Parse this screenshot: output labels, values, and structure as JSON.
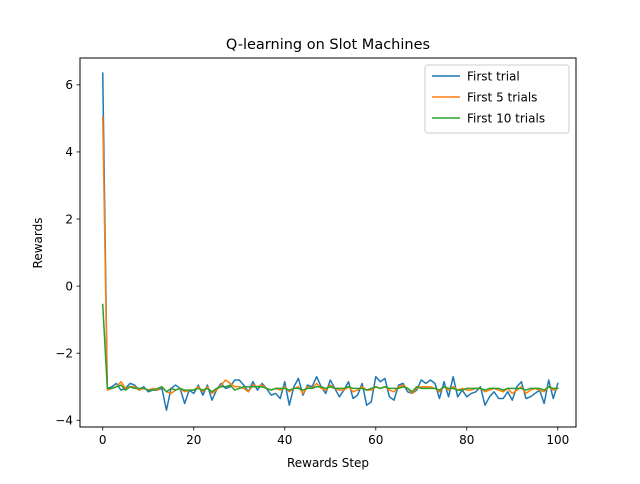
{
  "chart_data": {
    "type": "line",
    "title": "Q-learning on Slot Machines",
    "xlabel": "Rewards Step",
    "ylabel": "Rewards",
    "xlim": [
      -5,
      104
    ],
    "ylim": [
      -4.2,
      6.8
    ],
    "xticks": [
      0,
      20,
      40,
      60,
      80,
      100
    ],
    "yticks": [
      -4,
      -2,
      0,
      2,
      4,
      6
    ],
    "xtick_labels": [
      "0",
      "20",
      "40",
      "60",
      "80",
      "100"
    ],
    "ytick_labels": [
      "−4",
      "−2",
      "0",
      "2",
      "4",
      "6"
    ],
    "grid": false,
    "legend_position": "top-right",
    "series": [
      {
        "name": "First trial",
        "color": "#1f77b4",
        "values": [
          6.35,
          -3.05,
          -3.0,
          -2.9,
          -3.1,
          -3.05,
          -2.9,
          -2.95,
          -3.1,
          -3.0,
          -3.15,
          -3.1,
          -3.1,
          -3.05,
          -3.7,
          -3.05,
          -2.95,
          -3.05,
          -3.5,
          -3.1,
          -3.2,
          -2.95,
          -3.25,
          -2.95,
          -3.4,
          -3.1,
          -2.9,
          -3.05,
          -3.0,
          -2.8,
          -2.8,
          -2.95,
          -3.15,
          -2.85,
          -3.1,
          -2.9,
          -3.05,
          -3.25,
          -3.2,
          -3.35,
          -2.85,
          -3.55,
          -3.0,
          -2.75,
          -3.25,
          -2.95,
          -3.0,
          -2.7,
          -3.0,
          -3.2,
          -2.8,
          -3.05,
          -3.3,
          -3.1,
          -2.85,
          -3.35,
          -3.25,
          -2.9,
          -3.55,
          -3.45,
          -2.7,
          -2.85,
          -2.75,
          -3.3,
          -3.4,
          -2.95,
          -2.9,
          -3.15,
          -3.2,
          -3.1,
          -2.8,
          -2.9,
          -2.8,
          -2.9,
          -3.35,
          -2.85,
          -3.3,
          -2.7,
          -3.3,
          -3.1,
          -3.3,
          -3.2,
          -3.15,
          -3.0,
          -3.55,
          -3.3,
          -3.15,
          -3.35,
          -3.35,
          -3.15,
          -3.4,
          -3.0,
          -2.85,
          -3.35,
          -3.3,
          -3.2,
          -3.1,
          -3.5,
          -2.8,
          -3.35,
          -2.9
        ]
      },
      {
        "name": "First 5 trials",
        "color": "#ff7f0e",
        "values": [
          5.05,
          -3.1,
          -3.05,
          -3.0,
          -2.85,
          -3.05,
          -3.0,
          -3.0,
          -3.1,
          -3.05,
          -3.1,
          -3.05,
          -3.1,
          -3.0,
          -3.15,
          -3.2,
          -3.1,
          -3.05,
          -3.15,
          -3.1,
          -3.1,
          -3.0,
          -3.15,
          -3.0,
          -3.2,
          -3.1,
          -2.95,
          -2.8,
          -2.9,
          -3.0,
          -3.0,
          -3.05,
          -3.15,
          -2.95,
          -3.0,
          -2.95,
          -3.05,
          -3.1,
          -3.05,
          -3.1,
          -3.0,
          -3.15,
          -3.05,
          -3.0,
          -3.2,
          -3.0,
          -3.05,
          -2.9,
          -3.05,
          -3.1,
          -2.95,
          -3.05,
          -3.1,
          -3.1,
          -3.0,
          -3.15,
          -3.1,
          -3.0,
          -3.1,
          -3.1,
          -3.0,
          -3.05,
          -3.0,
          -3.1,
          -3.15,
          -3.0,
          -2.95,
          -3.05,
          -3.2,
          -3.05,
          -3.0,
          -3.0,
          -3.0,
          -3.05,
          -3.15,
          -3.0,
          -3.1,
          -3.0,
          -3.1,
          -3.05,
          -3.1,
          -3.1,
          -3.05,
          -3.05,
          -3.15,
          -3.1,
          -3.05,
          -3.1,
          -3.15,
          -3.05,
          -3.2,
          -3.1,
          -3.0,
          -3.2,
          -3.1,
          -3.05,
          -3.1,
          -3.15,
          -3.0,
          -3.1,
          -3.05
        ]
      },
      {
        "name": "First 10 trials",
        "color": "#2ca02c",
        "values": [
          -0.55,
          -3.05,
          -3.05,
          -3.0,
          -2.95,
          -3.1,
          -3.0,
          -3.05,
          -3.05,
          -3.05,
          -3.1,
          -3.1,
          -3.05,
          -3.0,
          -3.15,
          -3.05,
          -3.1,
          -3.05,
          -3.1,
          -3.1,
          -3.1,
          -3.05,
          -3.1,
          -3.05,
          -3.15,
          -3.05,
          -3.0,
          -3.0,
          -2.95,
          -3.1,
          -3.05,
          -3.0,
          -3.0,
          -3.0,
          -3.0,
          -3.0,
          -3.05,
          -3.1,
          -3.05,
          -3.05,
          -3.05,
          -3.1,
          -3.05,
          -3.05,
          -3.1,
          -3.05,
          -3.05,
          -3.0,
          -3.0,
          -3.05,
          -3.0,
          -3.05,
          -3.05,
          -3.05,
          -3.0,
          -3.05,
          -3.05,
          -3.05,
          -3.1,
          -3.05,
          -3.0,
          -3.05,
          -3.0,
          -3.05,
          -3.05,
          -3.05,
          -3.0,
          -3.05,
          -3.15,
          -3.0,
          -3.05,
          -3.05,
          -3.05,
          -3.05,
          -3.1,
          -3.0,
          -3.05,
          -3.05,
          -3.1,
          -3.1,
          -3.05,
          -3.05,
          -3.05,
          -3.05,
          -3.1,
          -3.05,
          -3.05,
          -3.05,
          -3.1,
          -3.05,
          -3.05,
          -3.05,
          -3.05,
          -3.1,
          -3.05,
          -3.05,
          -3.05,
          -3.1,
          -3.0,
          -3.05,
          -3.05
        ]
      }
    ]
  }
}
